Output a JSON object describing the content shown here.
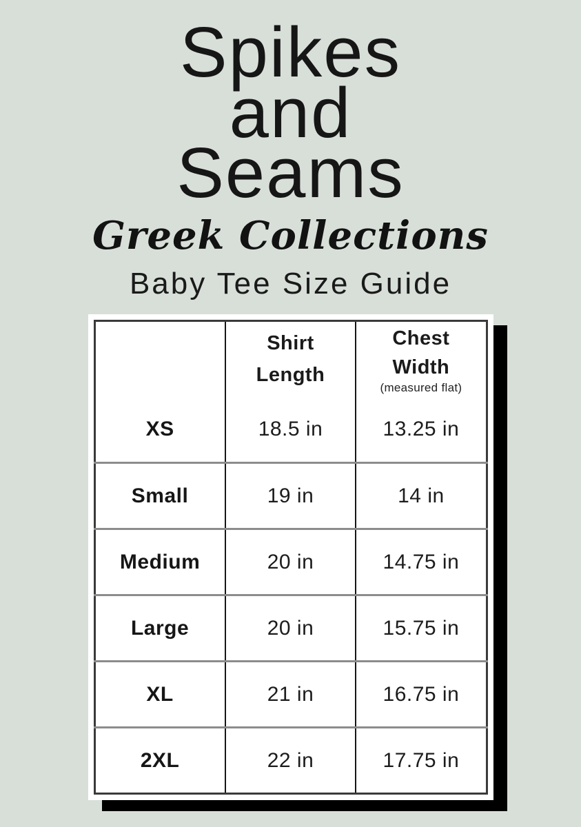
{
  "page": {
    "background_color": "#d8dfd9",
    "ink_color": "#141414"
  },
  "brand": {
    "title_line_1": "Spikes",
    "title_line_2": "and",
    "title_line_3": "Seams",
    "script_subtitle": "Greek Collections",
    "guide_title": "Baby Tee Size Guide"
  },
  "size_table": {
    "header": {
      "size_col": "",
      "shirt_line_1": "Shirt",
      "shirt_line_2": "Length",
      "chest_line_1": "Chest",
      "chest_line_2": "Width",
      "chest_note": "(measured flat)"
    },
    "rows": [
      {
        "size": "XS",
        "shirt_length": "18.5 in",
        "chest_width": "13.25 in"
      },
      {
        "size": "Small",
        "shirt_length": "19 in",
        "chest_width": "14 in"
      },
      {
        "size": "Medium",
        "shirt_length": "20 in",
        "chest_width": "14.75 in"
      },
      {
        "size": "Large",
        "shirt_length": "20 in",
        "chest_width": "15.75 in"
      },
      {
        "size": "XL",
        "shirt_length": "21 in",
        "chest_width": "16.75 in"
      },
      {
        "size": "2XL",
        "shirt_length": "22 in",
        "chest_width": "17.75 in"
      }
    ]
  }
}
